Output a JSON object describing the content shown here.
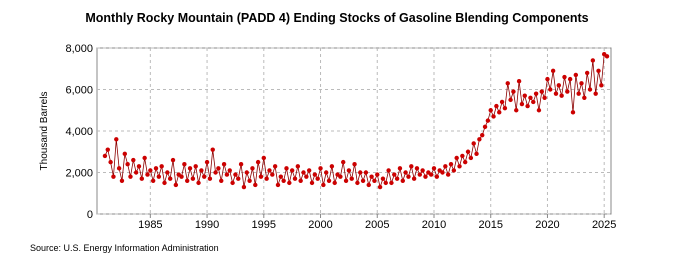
{
  "chart_data": {
    "type": "line",
    "title": "Monthly Rocky Mountain (PADD 4) Ending Stocks of Gasoline Blending Components",
    "y_label": "Thousand Barrels",
    "source": "Source: U.S. Energy Information Administration",
    "color": "#cc0000",
    "line_color": "#8b0000",
    "grid": true,
    "markers": true,
    "xlim": [
      1980.3,
      2025.6
    ],
    "xticks": [
      1985,
      1990,
      1995,
      2000,
      2005,
      2010,
      2015,
      2020,
      2025
    ],
    "ylim": [
      0,
      8000
    ],
    "yticks": [
      0,
      {
        "value": 2000,
        "label": "2,000"
      },
      {
        "value": 4000,
        "label": "4,000"
      },
      {
        "value": 6000,
        "label": "6,000"
      },
      {
        "value": 8000,
        "label": "8,000"
      }
    ],
    "x": [
      1981,
      1981.25,
      1981.5,
      1981.75,
      1982,
      1982.25,
      1982.5,
      1982.75,
      1983,
      1983.25,
      1983.5,
      1983.75,
      1984,
      1984.25,
      1984.5,
      1984.75,
      1985,
      1985.25,
      1985.5,
      1985.75,
      1986,
      1986.25,
      1986.5,
      1986.75,
      1987,
      1987.25,
      1987.5,
      1987.75,
      1988,
      1988.25,
      1988.5,
      1988.75,
      1989,
      1989.25,
      1989.5,
      1989.75,
      1990,
      1990.25,
      1990.5,
      1990.75,
      1991,
      1991.25,
      1991.5,
      1991.75,
      1992,
      1992.25,
      1992.5,
      1992.75,
      1993,
      1993.25,
      1993.5,
      1993.75,
      1994,
      1994.25,
      1994.5,
      1994.75,
      1995,
      1995.25,
      1995.5,
      1995.75,
      1996,
      1996.25,
      1996.5,
      1996.75,
      1997,
      1997.25,
      1997.5,
      1997.75,
      1998,
      1998.25,
      1998.5,
      1998.75,
      1999,
      1999.25,
      1999.5,
      1999.75,
      2000,
      2000.25,
      2000.5,
      2000.75,
      2001,
      2001.25,
      2001.5,
      2001.75,
      2002,
      2002.25,
      2002.5,
      2002.75,
      2003,
      2003.25,
      2003.5,
      2003.75,
      2004,
      2004.25,
      2004.5,
      2004.75,
      2005,
      2005.25,
      2005.5,
      2005.75,
      2006,
      2006.25,
      2006.5,
      2006.75,
      2007,
      2007.25,
      2007.5,
      2007.75,
      2008,
      2008.25,
      2008.5,
      2008.75,
      2009,
      2009.25,
      2009.5,
      2009.75,
      2010,
      2010.25,
      2010.5,
      2010.75,
      2011,
      2011.25,
      2011.5,
      2011.75,
      2012,
      2012.25,
      2012.5,
      2012.75,
      2013,
      2013.25,
      2013.5,
      2013.75,
      2014,
      2014.25,
      2014.5,
      2014.75,
      2015,
      2015.25,
      2015.5,
      2015.75,
      2016,
      2016.25,
      2016.5,
      2016.75,
      2017,
      2017.25,
      2017.5,
      2017.75,
      2018,
      2018.25,
      2018.5,
      2018.75,
      2019,
      2019.25,
      2019.5,
      2019.75,
      2020,
      2020.25,
      2020.5,
      2020.75,
      2021,
      2021.25,
      2021.5,
      2021.75,
      2022,
      2022.25,
      2022.5,
      2022.75,
      2023,
      2023.25,
      2023.5,
      2023.75,
      2024,
      2024.25,
      2024.5,
      2024.75,
      2025,
      2025.25
    ],
    "series": [
      {
        "values": [
          2800,
          3100,
          2500,
          1800,
          3600,
          2200,
          1600,
          2900,
          2400,
          1800,
          2600,
          2000,
          2300,
          1700,
          2700,
          1900,
          2100,
          1600,
          2200,
          1800,
          2300,
          1500,
          2000,
          1700,
          2600,
          1400,
          1900,
          1800,
          2400,
          1600,
          2200,
          1700,
          2300,
          1500,
          2100,
          1800,
          2500,
          1700,
          3100,
          2000,
          2200,
          1600,
          2400,
          1900,
          2100,
          1500,
          1900,
          1700,
          2400,
          1300,
          2000,
          1600,
          2200,
          1400,
          2500,
          1800,
          2700,
          1700,
          2100,
          1900,
          2300,
          1400,
          1800,
          1600,
          2200,
          1500,
          2100,
          1700,
          2300,
          1600,
          2000,
          1800,
          2100,
          1500,
          1900,
          1700,
          2200,
          1400,
          2000,
          1600,
          2300,
          1500,
          1900,
          1800,
          2500,
          1600,
          2100,
          1700,
          2400,
          1500,
          2000,
          1600,
          2000,
          1400,
          1800,
          1600,
          1900,
          1300,
          1700,
          1500,
          2100,
          1500,
          1900,
          1700,
          2200,
          1600,
          2000,
          1800,
          2300,
          1700,
          2200,
          1900,
          2100,
          1800,
          2000,
          1900,
          2200,
          1800,
          2100,
          2000,
          2300,
          1900,
          2400,
          2100,
          2700,
          2300,
          2800,
          2500,
          3000,
          2700,
          3400,
          2900,
          3600,
          3800,
          4200,
          4500,
          5000,
          4700,
          5200,
          4900,
          5400,
          5100,
          6300,
          5500,
          5900,
          5000,
          6400,
          5300,
          5700,
          5200,
          5600,
          5400,
          5800,
          5000,
          5900,
          5600,
          6500,
          6000,
          6900,
          5800,
          6200,
          5700,
          6600,
          5900,
          6500,
          4900,
          6700,
          5800,
          6300,
          5600,
          6800,
          6000,
          7400,
          5800,
          6900,
          6200,
          7700,
          7600
        ]
      }
    ]
  }
}
